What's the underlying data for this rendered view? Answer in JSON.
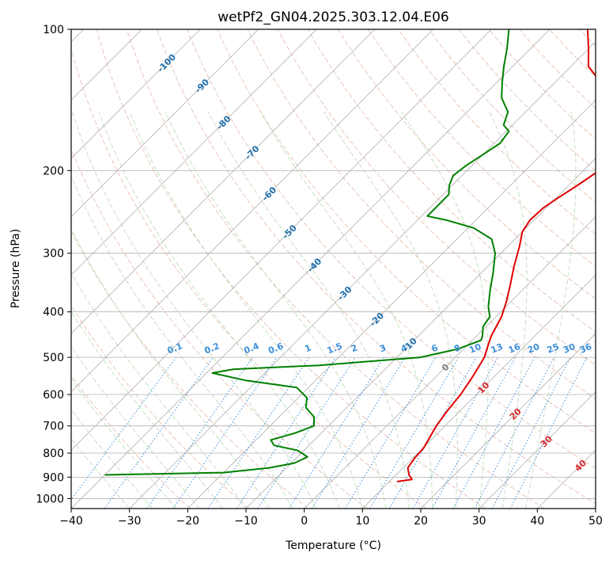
{
  "chart_data": {
    "type": "line",
    "diagram": "skew-T log-P",
    "title": "wetPf2_GN04.2025.303.12.04.E06",
    "xlabel": "Temperature (°C)",
    "ylabel": "Pressure (hPa)",
    "xlim": [
      -40,
      50
    ],
    "ylim": [
      1050,
      100
    ],
    "y_scale": "log",
    "grid": true,
    "x_ticks": [
      -40,
      -30,
      -20,
      -10,
      0,
      10,
      20,
      30,
      40,
      50
    ],
    "y_ticks": [
      100,
      200,
      300,
      400,
      500,
      600,
      700,
      800,
      900,
      1000
    ],
    "series": [
      {
        "role": "temperature",
        "color": "#e00000",
        "points": [
          {
            "p": 920,
            "t": 11.3
          },
          {
            "p": 910,
            "t": 13.5
          },
          {
            "p": 890,
            "t": 12.2
          },
          {
            "p": 860,
            "t": 10.8
          },
          {
            "p": 820,
            "t": 10.3
          },
          {
            "p": 780,
            "t": 10.1
          },
          {
            "p": 700,
            "t": 8.5
          },
          {
            "p": 650,
            "t": 7.8
          },
          {
            "p": 600,
            "t": 7.3
          },
          {
            "p": 550,
            "t": 6.3
          },
          {
            "p": 500,
            "t": 5.0
          },
          {
            "p": 470,
            "t": 3.5
          },
          {
            "p": 450,
            "t": 2.5
          },
          {
            "p": 410,
            "t": 1.0
          },
          {
            "p": 380,
            "t": -0.8
          },
          {
            "p": 350,
            "t": -3.0
          },
          {
            "p": 320,
            "t": -5.5
          },
          {
            "p": 290,
            "t": -8.0
          },
          {
            "p": 270,
            "t": -10.0
          },
          {
            "p": 255,
            "t": -10.7
          },
          {
            "p": 240,
            "t": -10.5
          },
          {
            "p": 230,
            "t": -9.8
          },
          {
            "p": 215,
            "t": -8.5
          },
          {
            "p": 200,
            "t": -7.3
          },
          {
            "p": 185,
            "t": -5.5
          },
          {
            "p": 175,
            "t": -6.3
          },
          {
            "p": 160,
            "t": -10.0
          },
          {
            "p": 145,
            "t": -16.0
          },
          {
            "p": 130,
            "t": -22.0
          },
          {
            "p": 120,
            "t": -27.0
          },
          {
            "p": 110,
            "t": -30.0
          },
          {
            "p": 100,
            "t": -33.5
          }
        ]
      },
      {
        "role": "dewpoint",
        "color": "#008000",
        "points": [
          {
            "p": 890,
            "t": -40.0
          },
          {
            "p": 880,
            "t": -20.0
          },
          {
            "p": 860,
            "t": -13.0
          },
          {
            "p": 840,
            "t": -9.5
          },
          {
            "p": 815,
            "t": -8.3
          },
          {
            "p": 790,
            "t": -11.0
          },
          {
            "p": 770,
            "t": -16.0
          },
          {
            "p": 750,
            "t": -17.5
          },
          {
            "p": 725,
            "t": -14.5
          },
          {
            "p": 700,
            "t": -12.5
          },
          {
            "p": 670,
            "t": -14.0
          },
          {
            "p": 640,
            "t": -17.0
          },
          {
            "p": 610,
            "t": -18.5
          },
          {
            "p": 580,
            "t": -22.0
          },
          {
            "p": 560,
            "t": -32.0
          },
          {
            "p": 540,
            "t": -39.0
          },
          {
            "p": 530,
            "t": -36.0
          },
          {
            "p": 520,
            "t": -22.0
          },
          {
            "p": 500,
            "t": -6.0
          },
          {
            "p": 480,
            "t": -1.0
          },
          {
            "p": 460,
            "t": 1.5
          },
          {
            "p": 450,
            "t": 1.0
          },
          {
            "p": 430,
            "t": -0.5
          },
          {
            "p": 410,
            "t": -1.0
          },
          {
            "p": 390,
            "t": -3.0
          },
          {
            "p": 360,
            "t": -5.5
          },
          {
            "p": 330,
            "t": -8.0
          },
          {
            "p": 300,
            "t": -11.0
          },
          {
            "p": 280,
            "t": -14.0
          },
          {
            "p": 265,
            "t": -19.0
          },
          {
            "p": 255,
            "t": -25.0
          },
          {
            "p": 250,
            "t": -29.0
          },
          {
            "p": 240,
            "t": -29.0
          },
          {
            "p": 225,
            "t": -29.0
          },
          {
            "p": 215,
            "t": -30.5
          },
          {
            "p": 205,
            "t": -31.5
          },
          {
            "p": 195,
            "t": -31.0
          },
          {
            "p": 185,
            "t": -30.0
          },
          {
            "p": 175,
            "t": -29.0
          },
          {
            "p": 165,
            "t": -29.5
          },
          {
            "p": 160,
            "t": -31.5
          },
          {
            "p": 150,
            "t": -33.0
          },
          {
            "p": 140,
            "t": -36.5
          },
          {
            "p": 130,
            "t": -39.0
          },
          {
            "p": 120,
            "t": -41.5
          },
          {
            "p": 110,
            "t": -44.0
          },
          {
            "p": 100,
            "t": -47.0
          }
        ]
      }
    ],
    "isotherm_labels": [
      {
        "label": "-100",
        "p": 118
      },
      {
        "label": "-90",
        "p": 132
      },
      {
        "label": "-80",
        "p": 158
      },
      {
        "label": "-70",
        "p": 183
      },
      {
        "label": "-60",
        "p": 224
      },
      {
        "label": "-50",
        "p": 270
      },
      {
        "label": "-40",
        "p": 318
      },
      {
        "label": "-30",
        "p": 365
      },
      {
        "label": "-20",
        "p": 415
      },
      {
        "label": "-10",
        "p": 470
      },
      {
        "label": "0",
        "p": 525
      },
      {
        "label": "10",
        "p": 580
      },
      {
        "label": "20",
        "p": 660
      },
      {
        "label": "30",
        "p": 755
      },
      {
        "label": "40",
        "p": 850
      }
    ],
    "mixing_ratio_labels": [
      "0.1",
      "0.2",
      "0.4",
      "0.6",
      "1",
      "1.5",
      "2",
      "3",
      "4",
      "6",
      "8",
      "10",
      "13",
      "16",
      "20",
      "25",
      "30",
      "36"
    ],
    "mixing_ratio_values": [
      0.1,
      0.2,
      0.4,
      0.6,
      1,
      1.5,
      2,
      3,
      4,
      6,
      8,
      10,
      13,
      16,
      20,
      25,
      30,
      36
    ],
    "colors": {
      "isotherm": "#b0b0b0",
      "isotherm_label_cold": "#1f6faa",
      "isotherm_label_zero": "#808080",
      "isotherm_label_warm": "#d62728",
      "dry_adiabat": "#e9c5b8",
      "moist_adiabat": "#c6e0c0",
      "mixing_ratio": "#3b8fd9",
      "pressure_grid": "#b0b0b0"
    }
  }
}
